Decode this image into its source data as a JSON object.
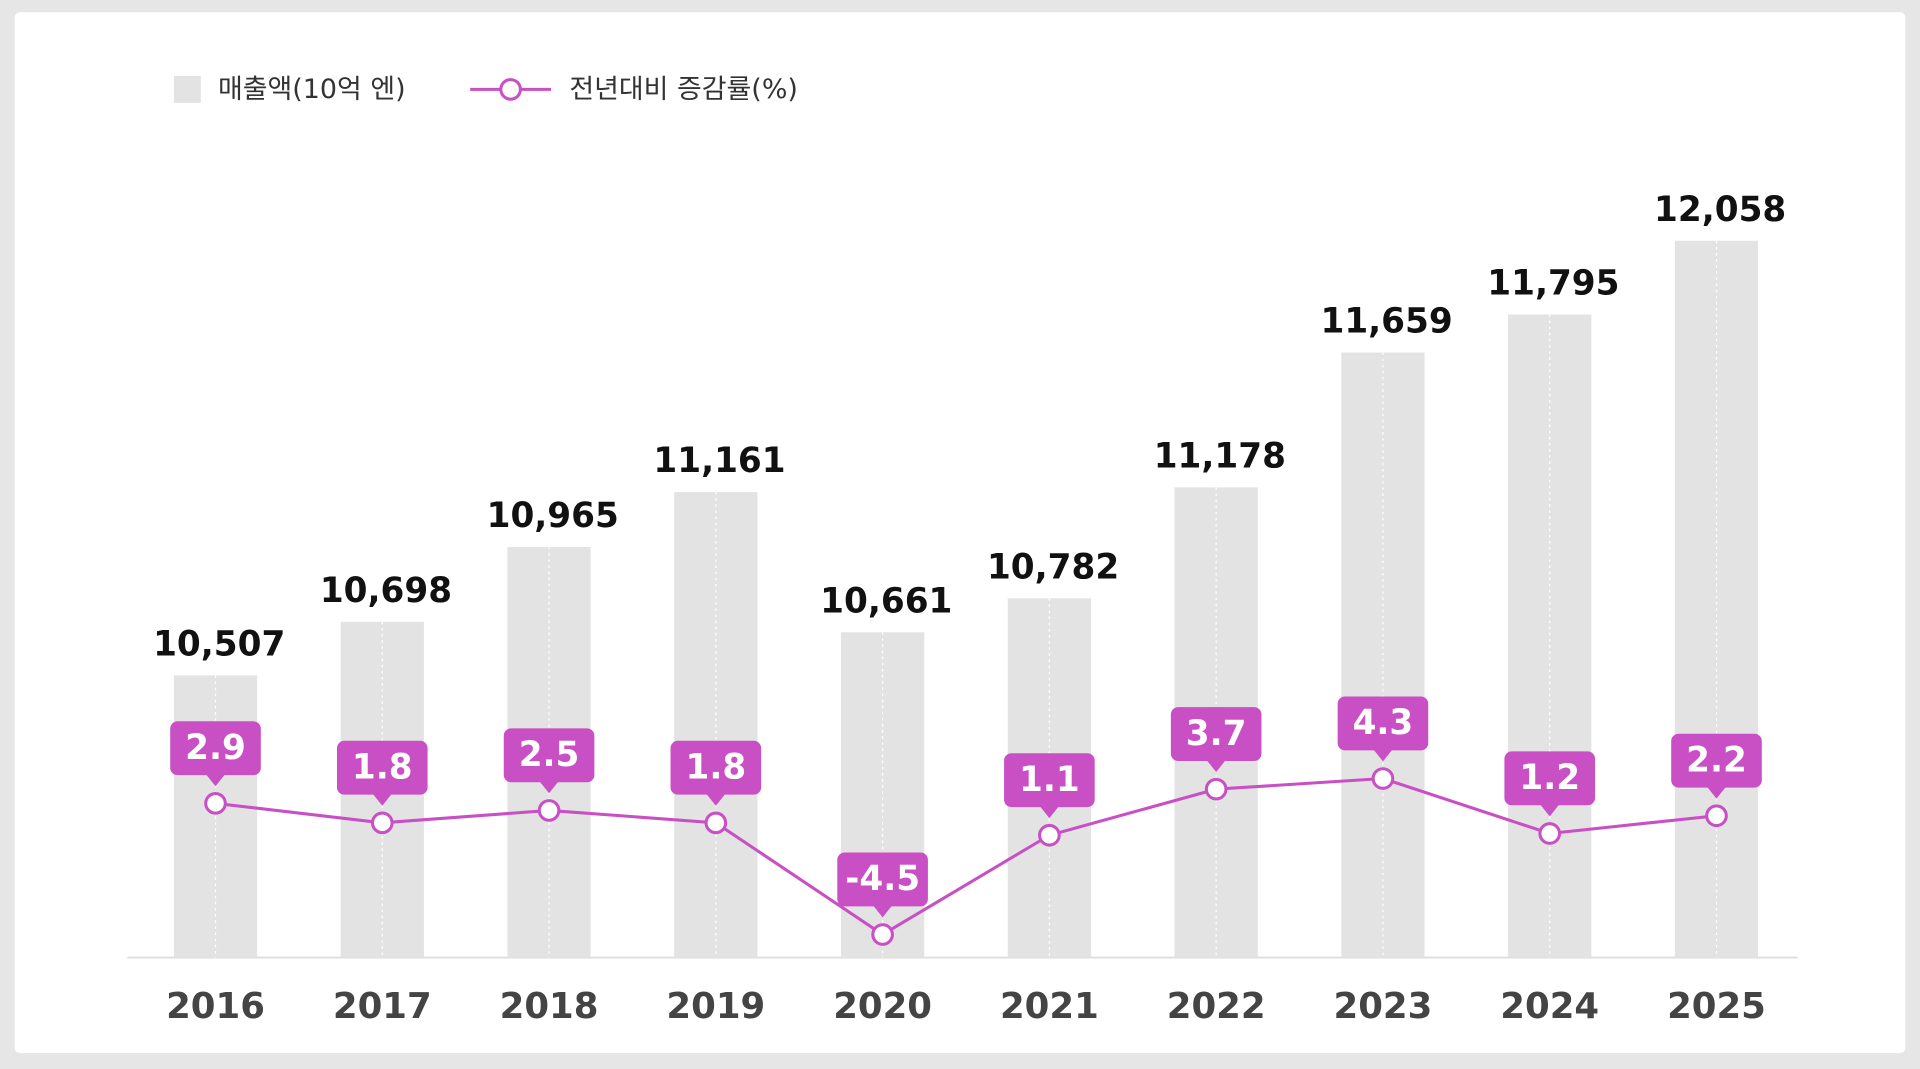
{
  "chart_data": {
    "type": "bar_line",
    "categories": [
      "2016",
      "2017",
      "2018",
      "2019",
      "2020",
      "2021",
      "2022",
      "2023",
      "2024",
      "2025"
    ],
    "series": [
      {
        "name": "매출액(10억 엔)",
        "type": "bar",
        "color": "#e3e3e3",
        "values": [
          10507,
          10698,
          10965,
          11161,
          10661,
          10782,
          11178,
          11659,
          11795,
          12058
        ],
        "value_labels": [
          "10,507",
          "10,698",
          "10,965",
          "11,161",
          "10,661",
          "10,782",
          "11,178",
          "11,659",
          "11,795",
          "12,058"
        ]
      },
      {
        "name": "전년대비 증감률(%)",
        "type": "line",
        "axis": "y2",
        "color": "#c94fc4",
        "values": [
          2.9,
          1.8,
          2.5,
          1.8,
          -4.5,
          1.1,
          3.7,
          4.3,
          1.2,
          2.2
        ]
      }
    ],
    "ylim": [
      9500,
      12100
    ],
    "y2lim": [
      -5.8,
      35.3
    ],
    "legend": "top-left"
  }
}
